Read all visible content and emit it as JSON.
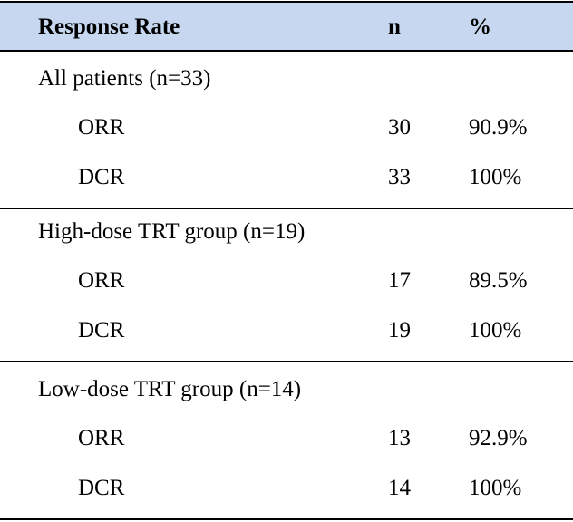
{
  "table": {
    "header": [
      "Response Rate",
      "n",
      "%"
    ],
    "groups": [
      {
        "label": "All patients (n=33)",
        "rows": [
          [
            "ORR",
            "30",
            "90.9%"
          ],
          [
            "DCR",
            "33",
            "100%"
          ]
        ]
      },
      {
        "label": "High-dose TRT group (n=19)",
        "rows": [
          [
            "ORR",
            "17",
            "89.5%"
          ],
          [
            "DCR",
            "19",
            "100%"
          ]
        ]
      },
      {
        "label": "Low-dose TRT group (n=14)",
        "rows": [
          [
            "ORR",
            "13",
            "92.9%"
          ],
          [
            "DCR",
            "14",
            "100%"
          ]
        ]
      }
    ]
  }
}
